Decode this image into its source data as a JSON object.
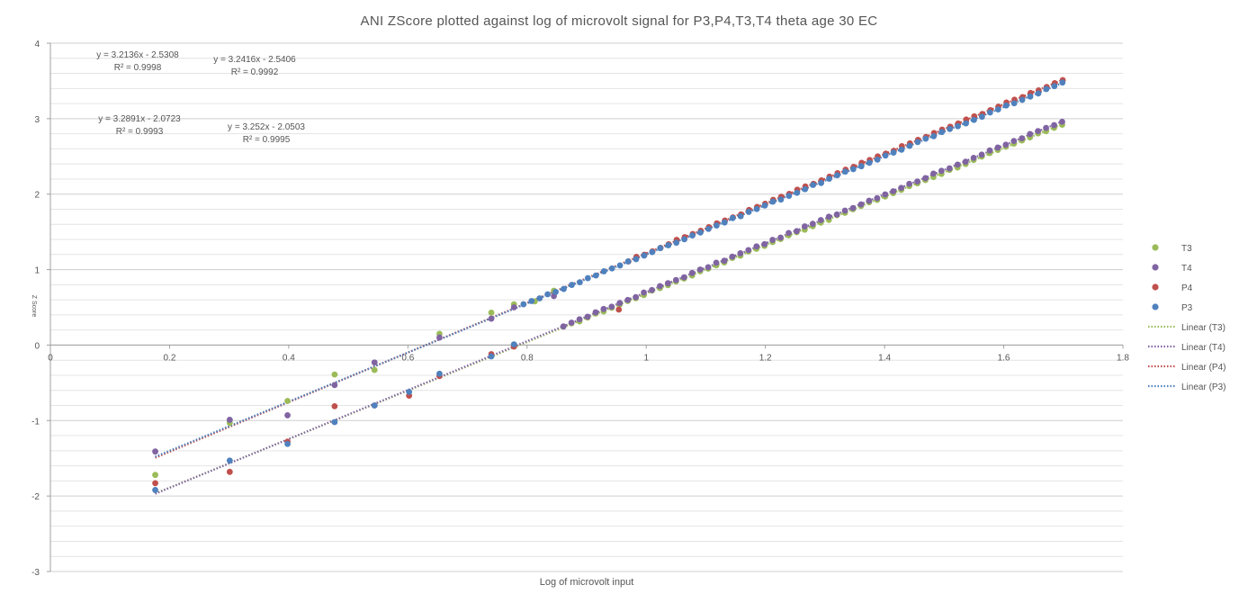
{
  "chart_data": {
    "type": "scatter",
    "title": "ANI ZScore plotted against log of microvolt signal for P3,P4,T3,T4 theta age 30 EC",
    "xlabel": "Log of microvolt input",
    "ylabel": "Z Score",
    "xlim": [
      0,
      1.8
    ],
    "ylim": [
      -3,
      4
    ],
    "x_ticks": [
      "0",
      "0.2",
      "0.4",
      "0.6",
      "0.8",
      "1",
      "1.2",
      "1.4",
      "1.6",
      "1.8"
    ],
    "y_ticks": [
      "4",
      "3",
      "2",
      "1",
      "0",
      "-1",
      "-2",
      "-3"
    ],
    "grid": "horizontal",
    "legend_position": "right",
    "x_range_points": [
      0.176,
      1.699
    ],
    "series": [
      {
        "name": "T3",
        "color": "#9BBB59",
        "slope": 3.2136,
        "intercept": -2.5308,
        "sample_points": [
          [
            0.176,
            -1.72
          ],
          [
            0.301,
            -1.03
          ],
          [
            0.398,
            -0.74
          ],
          [
            0.477,
            -0.39
          ],
          [
            0.544,
            -0.33
          ],
          [
            0.653,
            0.15
          ],
          [
            0.74,
            0.43
          ],
          [
            0.778,
            0.54
          ],
          [
            0.813,
            0.58
          ],
          [
            0.845,
            0.72
          ]
        ]
      },
      {
        "name": "T4",
        "color": "#8064A2",
        "slope": 3.2416,
        "intercept": -2.5406,
        "sample_points": [
          [
            0.176,
            -1.41
          ],
          [
            0.301,
            -0.99
          ],
          [
            0.398,
            -0.93
          ],
          [
            0.477,
            -0.53
          ],
          [
            0.544,
            -0.23
          ],
          [
            0.653,
            0.1
          ],
          [
            0.74,
            0.35
          ],
          [
            0.778,
            0.5
          ],
          [
            0.845,
            0.65
          ]
        ]
      },
      {
        "name": "P4",
        "color": "#C0504D",
        "slope": 3.2891,
        "intercept": -2.0723,
        "sample_points": [
          [
            0.176,
            -1.83
          ],
          [
            0.301,
            -1.68
          ],
          [
            0.398,
            -1.28
          ],
          [
            0.477,
            -0.81
          ],
          [
            0.544,
            -0.8
          ],
          [
            0.602,
            -0.67
          ],
          [
            0.653,
            -0.41
          ],
          [
            0.74,
            -0.12
          ],
          [
            0.778,
            -0.02
          ],
          [
            0.954,
            0.47
          ]
        ]
      },
      {
        "name": "P3",
        "color": "#4F81BD",
        "slope": 3.252,
        "intercept": -2.0503,
        "sample_points": [
          [
            0.176,
            -1.92
          ],
          [
            0.301,
            -1.53
          ],
          [
            0.398,
            -1.31
          ],
          [
            0.477,
            -1.02
          ],
          [
            0.544,
            -0.8
          ],
          [
            0.602,
            -0.62
          ],
          [
            0.653,
            -0.38
          ],
          [
            0.74,
            -0.15
          ],
          [
            0.778,
            0.01
          ]
        ]
      }
    ],
    "legend_entries": [
      "T3",
      "T4",
      "P4",
      "P3",
      "Linear (T3)",
      "Linear (T4)",
      "Linear (P4)",
      "Linear (P3)"
    ],
    "annotations": [
      {
        "eq": "y = 3.2136x - 2.5308",
        "r2": "R² = 0.9998"
      },
      {
        "eq": "y = 3.2416x - 2.5406",
        "r2": "R² = 0.9992"
      },
      {
        "eq": "y = 3.2891x - 2.0723",
        "r2": "R² = 0.9993"
      },
      {
        "eq": "y = 3.252x - 2.0503",
        "r2": "R² = 0.9995"
      }
    ]
  }
}
